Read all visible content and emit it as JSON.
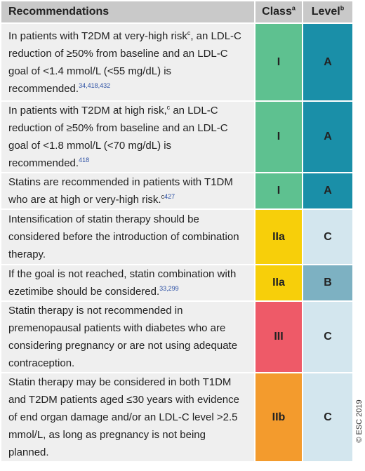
{
  "header": {
    "recommendations": "Recommendations",
    "class": "Class",
    "class_sup": "a",
    "level": "Level",
    "level_sup": "b"
  },
  "rows": [
    {
      "recommendation": [
        {
          "text": "In patients with T2DM at very-high risk"
        },
        {
          "sup": "c"
        },
        {
          "text": ", an LDL-C reduction of ≥50% from baseline and an LDL-C goal of <1.4 mmol/L (<55 mg/dL) is recommended."
        },
        {
          "ref": "34,418,432"
        }
      ],
      "class": "I",
      "class_color": "#5ec190",
      "level": "A",
      "level_color": "#1a8fa8"
    },
    {
      "recommendation": [
        {
          "text": "In patients with T2DM at high risk,"
        },
        {
          "sup": "c"
        },
        {
          "text": " an LDL-C reduction of ≥50% from baseline and an LDL-C goal of <1.8 mmol/L (<70 mg/dL) is recommended."
        },
        {
          "ref": "418"
        }
      ],
      "class": "I",
      "class_color": "#5ec190",
      "level": "A",
      "level_color": "#1a8fa8"
    },
    {
      "recommendation": [
        {
          "text": "Statins are recommended in patients with T1DM who are at high or very-high risk."
        },
        {
          "sup": "c"
        },
        {
          "ref": "427"
        }
      ],
      "class": "I",
      "class_color": "#5ec190",
      "level": "A",
      "level_color": "#1a8fa8"
    },
    {
      "recommendation": [
        {
          "text": "Intensification of statin therapy should be considered before the introduction of combination therapy."
        }
      ],
      "class": "IIa",
      "class_color": "#f7cf0a",
      "level": "C",
      "level_color": "#d3e6ee"
    },
    {
      "recommendation": [
        {
          "text": "If the goal is not reached, statin combination with ezetimibe should be considered."
        },
        {
          "ref": "33,299"
        }
      ],
      "class": "IIa",
      "class_color": "#f7cf0a",
      "level": "B",
      "level_color": "#7db1c2"
    },
    {
      "recommendation": [
        {
          "text": "Statin therapy is not recommended in premenopausal patients with diabetes who are considering pregnancy or are not using adequate contraception."
        }
      ],
      "class": "III",
      "class_color": "#ee5a68",
      "level": "C",
      "level_color": "#d3e6ee"
    },
    {
      "recommendation": [
        {
          "text": "Statin therapy may be considered in both T1DM and T2DM patients aged ≤30 years with evidence of end organ damage and/or an LDL-C level >2.5 mmol/L, as long as pregnancy is not being planned."
        }
      ],
      "class": "IIb",
      "class_color": "#f39b2d",
      "level": "C",
      "level_color": "#d3e6ee"
    }
  ],
  "copyright": "© ESC 2019"
}
